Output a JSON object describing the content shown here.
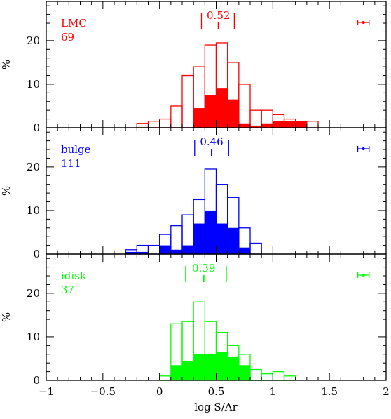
{
  "chart_data": {
    "type": "bar",
    "layout": "three vertically stacked histogram panels sharing one x-axis",
    "xlabel": "log S/Ar",
    "ylabel": "%",
    "xlim": [
      -1,
      2
    ],
    "ylim": [
      0,
      29
    ],
    "x_ticks": [
      -1,
      -0.5,
      0,
      0.5,
      1,
      1.5,
      2
    ],
    "x_tick_labels": [
      "−1",
      "−0.5",
      "0",
      "0.5",
      "1",
      "1.5",
      "2"
    ],
    "y_ticks": [
      0,
      10,
      20
    ],
    "y_tick_labels": [
      "0",
      "10",
      "20"
    ],
    "bin_width": 0.1,
    "bin_starts": [
      -0.3,
      -0.2,
      -0.1,
      0.0,
      0.1,
      0.2,
      0.3,
      0.4,
      0.5,
      0.6,
      0.7,
      0.8,
      0.9,
      1.0,
      1.1,
      1.2,
      1.3
    ],
    "panels": [
      {
        "label": "LMC",
        "count": "69",
        "color": "#ff0000",
        "median": 0.52,
        "median_label": "0.52",
        "quartiles": [
          0.37,
          0.66
        ],
        "errorbar": {
          "center": 1.8,
          "half_width": 0.05
        },
        "series": [
          {
            "style": "open",
            "values": [
              0,
              1,
              1.5,
              2,
              5,
              12,
              14,
              19,
              19.5,
              15,
              10,
              4,
              4,
              3,
              2,
              1.5,
              1.5
            ]
          },
          {
            "style": "filled",
            "values": [
              0,
              0,
              0,
              0,
              0,
              0,
              4.5,
              7.5,
              9,
              6.5,
              1,
              0.5,
              1,
              1.5,
              1.5,
              1.5,
              0
            ]
          }
        ]
      },
      {
        "label": "bulge",
        "count": "111",
        "color": "#0000ff",
        "median": 0.46,
        "median_label": "0.46",
        "quartiles": [
          0.31,
          0.61
        ],
        "errorbar": {
          "center": 1.8,
          "half_width": 0.05
        },
        "series": [
          {
            "style": "open",
            "values": [
              1,
              2,
              2,
              4.5,
              6.5,
              9,
              12.5,
              19.5,
              16,
              13,
              6,
              2.5,
              0,
              0,
              0,
              0,
              0
            ]
          },
          {
            "style": "filled",
            "values": [
              0.5,
              0.5,
              0,
              2,
              1,
              2,
              7,
              10,
              7,
              6,
              1.5,
              0,
              0,
              0,
              0,
              0,
              0
            ]
          }
        ]
      },
      {
        "label": "idisk",
        "count": "37",
        "color": "#00ff00",
        "median": 0.39,
        "median_label": "0.39",
        "quartiles": [
          0.23,
          0.59
        ],
        "errorbar": {
          "center": 1.8,
          "half_width": 0.05
        },
        "series": [
          {
            "style": "open",
            "values": [
              0,
              0,
              0,
              1,
              13,
              13.5,
              18,
              13.5,
              11,
              8,
              6,
              2.5,
              1.5,
              2,
              1,
              0,
              0
            ]
          },
          {
            "style": "filled",
            "values": [
              0,
              0,
              0,
              0,
              3.5,
              4.5,
              6,
              6,
              6.5,
              5.5,
              3.5,
              0,
              0,
              0,
              0,
              0,
              0
            ]
          }
        ]
      }
    ]
  }
}
